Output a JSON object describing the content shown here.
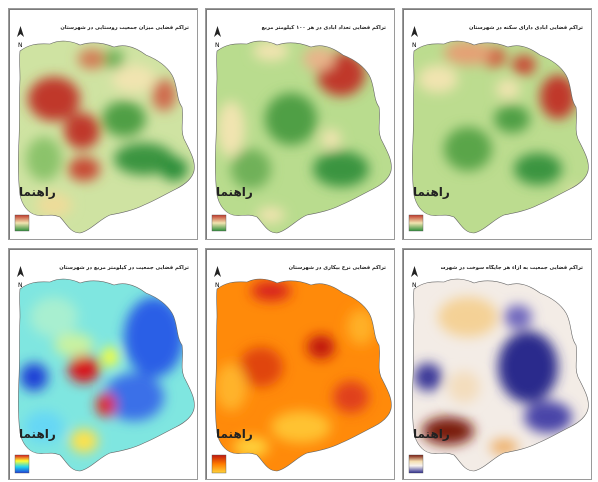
{
  "panels": [
    {
      "id": "rural-population",
      "title": "تراکم فضایی میزان جمعیت روستایی در شهرستان",
      "legend_title": "راهنما",
      "palette": "green-red"
    },
    {
      "id": "villages-per-100km2",
      "title": "تراکم فضایی تعداد آبادی در هر ۱۰۰ کیلومتر مربع",
      "legend_title": "راهنما",
      "palette": "green-red"
    },
    {
      "id": "inhabited-villages",
      "title": "تراکم فضایی آبادی دارای سکنه در شهرستان",
      "legend_title": "راهنما",
      "palette": "green-red"
    },
    {
      "id": "population-per-km2",
      "title": "تراکم فضایی جمعیت در کیلومتر مربع در شهرستان",
      "legend_title": "راهنما",
      "palette": "jet"
    },
    {
      "id": "unemployment-rate",
      "title": "تراکم فضایی نرخ بیکاری در شهرستان",
      "legend_title": "راهنما",
      "palette": "yellow-red"
    },
    {
      "id": "population-per-fuel-station",
      "title": "تراکم فضایی جمعیت به ازاء هر جایگاه سوخت در شهرستان",
      "legend_title": "راهنما",
      "palette": "brown-purple"
    }
  ],
  "colors": {
    "green_red": [
      "#c0392b",
      "#f1e4b0",
      "#2f8f3a"
    ],
    "jet": [
      "#d7191c",
      "#ffff33",
      "#22d3f0",
      "#1f3fd6"
    ],
    "yellow_red": [
      "#c0170f",
      "#ff7b00",
      "#ffd23b"
    ],
    "brown_purple": [
      "#7a1a0e",
      "#f4deb0",
      "#f7f2ee",
      "#2b2a8c"
    ]
  }
}
